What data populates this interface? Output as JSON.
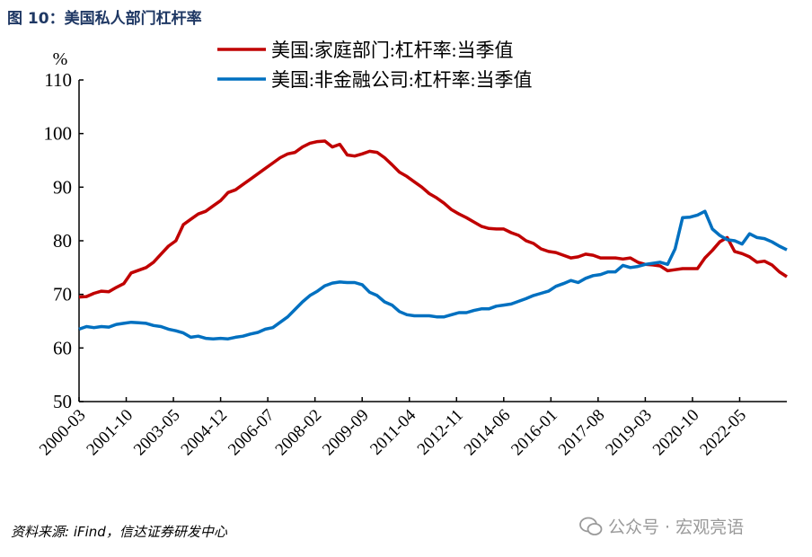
{
  "title": "图 10：美国私人部门杠杆率",
  "source": "资料来源: iFind，信达证券研发中心",
  "watermark": "公众号 · 宏观亮语",
  "chart_data": {
    "type": "line",
    "unit_label": "%",
    "ylim": [
      50,
      110
    ],
    "yticks": [
      50,
      60,
      70,
      80,
      90,
      100,
      110
    ],
    "xticks": [
      "2000-03",
      "2001-10",
      "2003-05",
      "2004-12",
      "2006-07",
      "2008-02",
      "2009-09",
      "2011-04",
      "2012-11",
      "2014-06",
      "2016-01",
      "2017-08",
      "2019-03",
      "2020-10",
      "2022-05"
    ],
    "x_start": "2000-03",
    "x_end": "2023-12",
    "frequency": "quarterly",
    "legend_position": "top-right",
    "series": [
      {
        "name": "美国:家庭部门:杠杆率:当季值",
        "color": "#c00000",
        "values": [
          69.5,
          69.6,
          70.2,
          70.6,
          70.5,
          71.3,
          72,
          74,
          74.5,
          75,
          76,
          77.5,
          79,
          80,
          83,
          84,
          85,
          85.5,
          86.5,
          87.5,
          89,
          89.5,
          90.5,
          91.5,
          92.5,
          93.5,
          94.5,
          95.5,
          96.2,
          96.5,
          97.5,
          98.2,
          98.5,
          98.6,
          97.5,
          98,
          96,
          95.8,
          96.2,
          96.7,
          96.5,
          95.5,
          94.2,
          92.8,
          92,
          91,
          90,
          88.8,
          88,
          87,
          85.8,
          85,
          84.3,
          83.5,
          82.7,
          82.3,
          82.2,
          82.2,
          81.5,
          81,
          80,
          79.5,
          78.5,
          78,
          77.8,
          77.3,
          76.8,
          77,
          77.5,
          77.3,
          76.8,
          76.8,
          76.8,
          76.6,
          76.8,
          76,
          75.6,
          75.5,
          75.3,
          74.4,
          74.6,
          74.8,
          74.8,
          74.8,
          76.8,
          78.2,
          79.8,
          80.6,
          78,
          77.6,
          77,
          76,
          76.2,
          75.5,
          74.2,
          73.3
        ]
      },
      {
        "name": "美国:非金融公司:杠杆率:当季值",
        "color": "#0070c0",
        "values": [
          63.5,
          64,
          63.8,
          64,
          63.9,
          64.4,
          64.6,
          64.8,
          64.7,
          64.6,
          64.2,
          64,
          63.5,
          63.2,
          62.8,
          62,
          62.2,
          61.8,
          61.7,
          61.8,
          61.7,
          62,
          62.2,
          62.6,
          62.9,
          63.5,
          63.8,
          64.8,
          65.8,
          67.2,
          68.6,
          69.8,
          70.6,
          71.6,
          72.1,
          72.3,
          72.2,
          72.2,
          71.8,
          70.4,
          69.8,
          68.6,
          68,
          66.8,
          66.2,
          66,
          66,
          66,
          65.8,
          65.8,
          66.2,
          66.6,
          66.6,
          67,
          67.3,
          67.3,
          67.8,
          68,
          68.2,
          68.7,
          69.2,
          69.8,
          70.2,
          70.6,
          71.5,
          72,
          72.6,
          72.2,
          73,
          73.5,
          73.7,
          74.2,
          74.2,
          75.4,
          75,
          75.2,
          75.6,
          75.8,
          76,
          75.6,
          78.5,
          84.3,
          84.4,
          84.8,
          85.5,
          82.2,
          81,
          80.2,
          80,
          79.4,
          81.3,
          80.6,
          80.4,
          79.8,
          79,
          78.3
        ]
      }
    ]
  }
}
